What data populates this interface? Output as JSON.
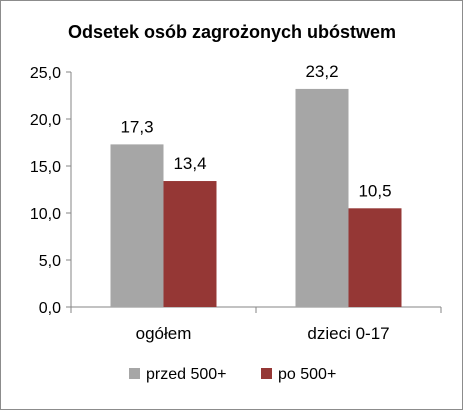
{
  "chart_data": {
    "type": "bar",
    "title": "Odsetek osób zagrożonych ubóstwem",
    "categories": [
      "ogółem",
      "dzieci 0-17"
    ],
    "series": [
      {
        "name": "przed 500+",
        "values": [
          17.3,
          23.2
        ],
        "labels": [
          "17,3",
          "23,2"
        ],
        "color": "#a6a6a6"
      },
      {
        "name": "po 500+",
        "values": [
          13.4,
          10.5
        ],
        "labels": [
          "13,4",
          "10,5"
        ],
        "color": "#953735"
      }
    ],
    "ylim": [
      0,
      25
    ],
    "yticks": [
      0,
      5,
      10,
      15,
      20,
      25
    ],
    "ytick_labels": [
      "0,0",
      "5,0",
      "10,0",
      "15,0",
      "20,0",
      "25,0"
    ],
    "grid": false,
    "legend_position": "bottom"
  }
}
